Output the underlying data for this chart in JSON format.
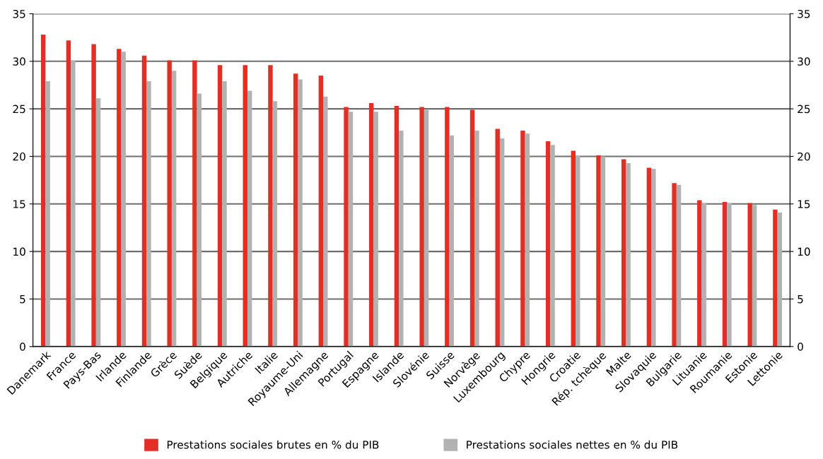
{
  "chart_data": {
    "type": "bar",
    "categories": [
      "Danemark",
      "France",
      "Pays-Bas",
      "Irlande",
      "Finlande",
      "Grèce",
      "Suède",
      "Belgique",
      "Autriche",
      "Italie",
      "Royaume-Uni",
      "Allemagne",
      "Portugal",
      "Espagne",
      "Islande",
      "Slovénie",
      "Suisse",
      "Norvège",
      "Luxembourg",
      "Chypre",
      "Hongrie",
      "Croatie",
      "Rép. tchèque",
      "Malte",
      "Slovaquie",
      "Bulgarie",
      "Lituanie",
      "Roumanie",
      "Estonie",
      "Lettonie"
    ],
    "series": [
      {
        "name": "Prestations sociales brutes en % du PIB",
        "color": "#e42e24",
        "values": [
          32.8,
          32.2,
          31.8,
          31.3,
          30.6,
          30.1,
          30.1,
          29.6,
          29.6,
          29.6,
          28.7,
          28.5,
          25.2,
          25.6,
          25.3,
          25.2,
          25.2,
          24.9,
          22.9,
          22.7,
          21.6,
          20.6,
          20.1,
          19.7,
          18.8,
          17.2,
          15.4,
          15.2,
          15.1,
          14.4
        ]
      },
      {
        "name": "Prestations sociales nettes en % du PIB",
        "color": "#b2b2b2",
        "values": [
          27.9,
          30.1,
          26.1,
          31.0,
          27.9,
          29.0,
          26.6,
          27.9,
          26.9,
          25.8,
          28.1,
          26.3,
          24.7,
          24.7,
          22.7,
          24.9,
          22.2,
          22.7,
          21.9,
          22.4,
          21.2,
          20.1,
          20.0,
          19.3,
          18.7,
          17.0,
          15.1,
          15.1,
          14.9,
          14.1
        ]
      }
    ],
    "ylim": [
      0,
      35
    ],
    "yticks": [
      0,
      5,
      10,
      15,
      20,
      25,
      30,
      35
    ],
    "y2lim": [
      0,
      35
    ],
    "y2ticks": [
      0,
      5,
      10,
      15,
      20,
      25,
      30,
      35
    ],
    "grid": "y",
    "legend": "bottom"
  }
}
